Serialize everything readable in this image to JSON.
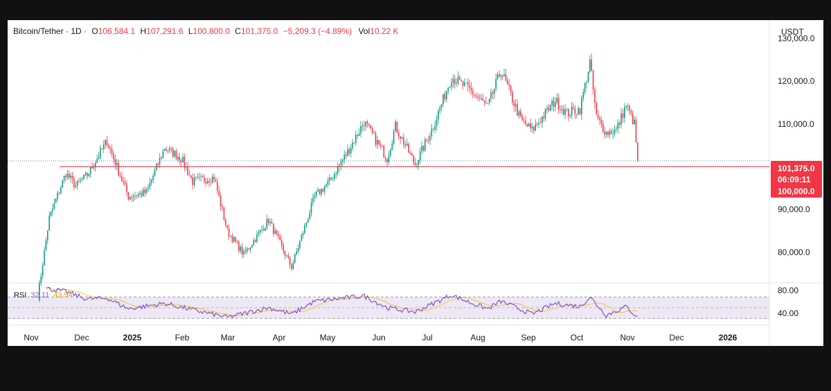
{
  "legend": {
    "symbol": "Bitcoin/Tether · 1D ·",
    "open_label": "O",
    "open": "106,584.1",
    "high_label": "H",
    "high": "107,291.6",
    "low_label": "L",
    "low": "100,800.0",
    "close_label": "C",
    "close": "101,375.0",
    "change": "−5,209.3 (−4.89%)",
    "vol_label": "Vol",
    "vol": "10.22 K"
  },
  "price_axis": {
    "unit": "USDT",
    "ticks": [
      "130,000.0",
      "120,000.0",
      "110,000.0",
      "90,000.0",
      "80,000.0"
    ]
  },
  "tags": {
    "last_price": "101,375.0",
    "countdown": "06:09:11",
    "level": "100,000.0"
  },
  "rsi": {
    "label": "RSI",
    "value": "32.11",
    "ma_value": "43.54",
    "ticks": [
      "80.00",
      "40.00"
    ]
  },
  "time_axis": [
    "Nov",
    "Dec",
    "2025",
    "Feb",
    "Mar",
    "Apr",
    "May",
    "Jun",
    "Jul",
    "Aug",
    "Sep",
    "Oct",
    "Nov",
    "Dec",
    "2026"
  ],
  "colors": {
    "up": "#089981",
    "down": "#f23645",
    "rsi": "#7e57c2",
    "rsi_ma": "#f7c948",
    "rsi_band": "#ede7f6"
  },
  "chart_data": {
    "type": "candlestick",
    "price_range": [
      73000,
      133000
    ],
    "level_line": 100000,
    "last_close": 101375,
    "anchors": [
      [
        "2024-11-05",
        69500
      ],
      [
        "2024-11-12",
        88000
      ],
      [
        "2024-11-22",
        98500
      ],
      [
        "2024-11-28",
        95500
      ],
      [
        "2024-12-05",
        98000
      ],
      [
        "2024-12-17",
        106000
      ],
      [
        "2024-12-30",
        93000
      ],
      [
        "2025-01-10",
        94000
      ],
      [
        "2025-01-21",
        104500
      ],
      [
        "2025-01-31",
        102000
      ],
      [
        "2025-02-07",
        96500
      ],
      [
        "2025-02-20",
        97500
      ],
      [
        "2025-02-28",
        85000
      ],
      [
        "2025-03-10",
        79500
      ],
      [
        "2025-03-25",
        87500
      ],
      [
        "2025-04-08",
        76500
      ],
      [
        "2025-04-22",
        93000
      ],
      [
        "2025-05-01",
        96500
      ],
      [
        "2025-05-12",
        103500
      ],
      [
        "2025-05-22",
        110500
      ],
      [
        "2025-06-05",
        102000
      ],
      [
        "2025-06-10",
        109500
      ],
      [
        "2025-06-22",
        100500
      ],
      [
        "2025-07-03",
        109500
      ],
      [
        "2025-07-14",
        121000
      ],
      [
        "2025-07-25",
        118000
      ],
      [
        "2025-08-05",
        114000
      ],
      [
        "2025-08-13",
        122500
      ],
      [
        "2025-08-25",
        111000
      ],
      [
        "2025-09-01",
        108500
      ],
      [
        "2025-09-15",
        115500
      ],
      [
        "2025-09-22",
        112500
      ],
      [
        "2025-09-30",
        113500
      ],
      [
        "2025-10-06",
        124500
      ],
      [
        "2025-10-10",
        111500
      ],
      [
        "2025-10-16",
        108000
      ],
      [
        "2025-10-22",
        108500
      ],
      [
        "2025-10-28",
        114500
      ],
      [
        "2025-11-02",
        110000
      ],
      [
        "2025-11-04",
        101375
      ]
    ],
    "rsi": {
      "range": [
        20,
        90
      ],
      "bands": [
        70,
        30
      ],
      "anchors": [
        [
          "2024-11-10",
          86
        ],
        [
          "2024-11-22",
          80
        ],
        [
          "2024-12-05",
          66
        ],
        [
          "2024-12-17",
          68
        ],
        [
          "2024-12-30",
          48
        ],
        [
          "2025-01-21",
          58
        ],
        [
          "2025-02-07",
          46
        ],
        [
          "2025-02-28",
          32
        ],
        [
          "2025-03-25",
          50
        ],
        [
          "2025-04-08",
          38
        ],
        [
          "2025-04-22",
          62
        ],
        [
          "2025-05-22",
          72
        ],
        [
          "2025-06-05",
          50
        ],
        [
          "2025-06-22",
          42
        ],
        [
          "2025-07-14",
          74
        ],
        [
          "2025-07-25",
          60
        ],
        [
          "2025-08-05",
          48
        ],
        [
          "2025-08-13",
          62
        ],
        [
          "2025-09-01",
          38
        ],
        [
          "2025-09-15",
          58
        ],
        [
          "2025-09-30",
          52
        ],
        [
          "2025-10-06",
          70
        ],
        [
          "2025-10-16",
          36
        ],
        [
          "2025-10-28",
          52
        ],
        [
          "2025-11-04",
          32
        ]
      ]
    }
  }
}
